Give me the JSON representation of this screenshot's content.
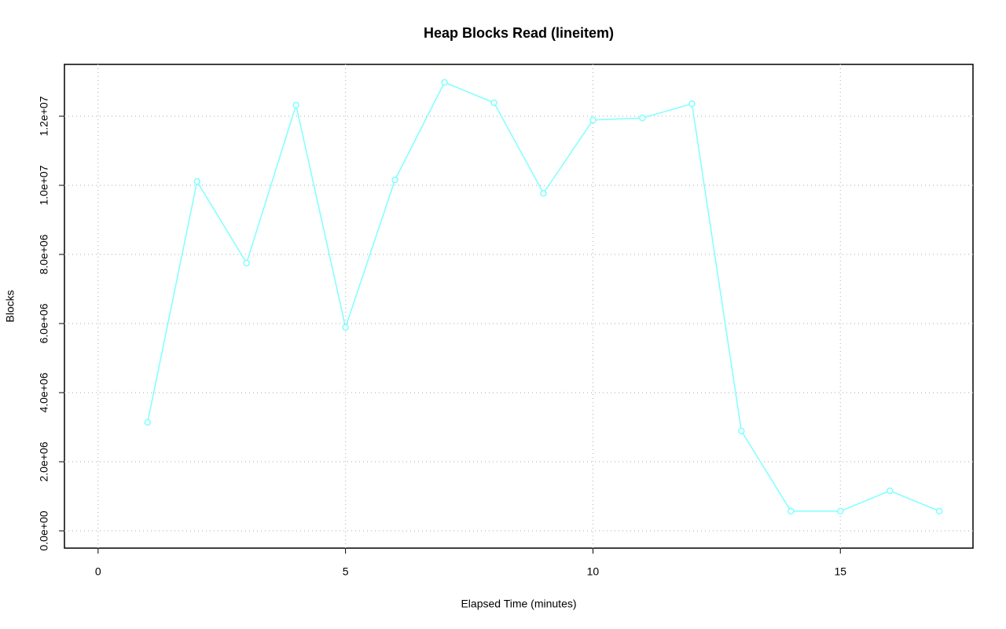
{
  "chart_data": {
    "type": "line",
    "title": "Heap Blocks Read (lineitem)",
    "x_label": "Elapsed Time (minutes)",
    "y_label": "Blocks",
    "x": [
      1,
      2,
      3,
      4,
      5,
      6,
      7,
      8,
      9,
      10,
      11,
      12,
      13,
      14,
      15,
      16,
      17
    ],
    "series": [
      {
        "name": "lineitem",
        "color": "#80ffff",
        "values": [
          3140000,
          10110000,
          7750000,
          12320000,
          5890000,
          10160000,
          12980000,
          12390000,
          9770000,
          11890000,
          11950000,
          12360000,
          2890000,
          570000,
          570000,
          1160000,
          570000
        ]
      }
    ],
    "xlim": [
      -0.68,
      17.68
    ],
    "xticks": [
      0,
      5,
      10,
      15
    ],
    "ylim": [
      -500000,
      13500000
    ],
    "yticks": [
      {
        "value": 0,
        "label": "0.0e+00"
      },
      {
        "value": 2000000,
        "label": "2.0e+06"
      },
      {
        "value": 4000000,
        "label": "4.0e+06"
      },
      {
        "value": 6000000,
        "label": "6.0e+06"
      },
      {
        "value": 8000000,
        "label": "8.0e+06"
      },
      {
        "value": 10000000,
        "label": "1.0e+07"
      },
      {
        "value": 12000000,
        "label": "1.2e+07"
      }
    ],
    "grid": true
  }
}
